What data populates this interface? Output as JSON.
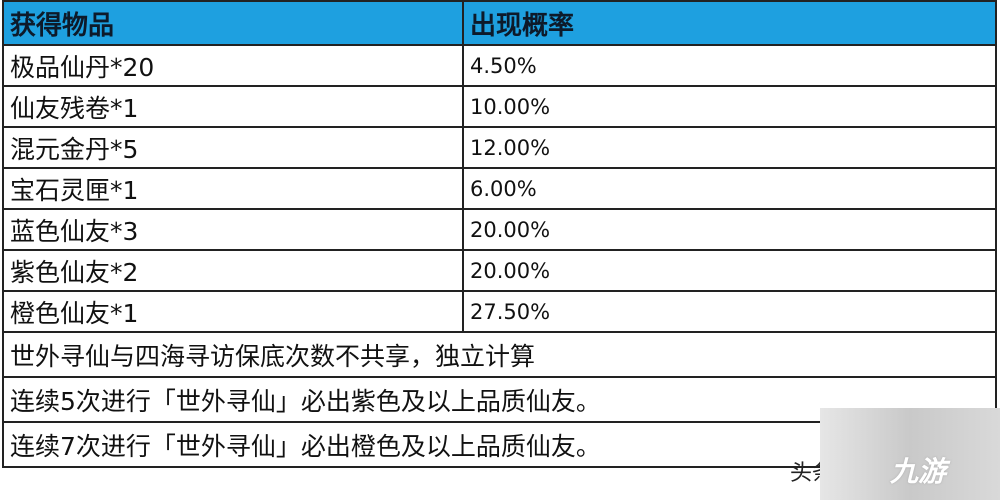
{
  "table": {
    "headers": [
      "获得物品",
      "出现概率"
    ],
    "rows": [
      {
        "item": "极品仙丹*20",
        "rate": "4.50%"
      },
      {
        "item": "仙友残卷*1",
        "rate": "10.00%"
      },
      {
        "item": "混元金丹*5",
        "rate": "12.00%"
      },
      {
        "item": "宝石灵匣*1",
        "rate": "6.00%"
      },
      {
        "item": "蓝色仙友*3",
        "rate": "20.00%"
      },
      {
        "item": "紫色仙友*2",
        "rate": "20.00%"
      },
      {
        "item": "橙色仙友*1",
        "rate": "27.50%"
      }
    ],
    "notes": [
      "世外寻仙与四海寻访保底次数不共享，独立计算",
      "连续5次进行「世外寻仙」必出紫色及以上品质仙友。",
      "连续7次进行「世外寻仙」必出橙色及以上品质仙友。"
    ],
    "header_color": "#1ea0e0"
  },
  "watermark": {
    "text": "头条",
    "logo": "九游"
  }
}
